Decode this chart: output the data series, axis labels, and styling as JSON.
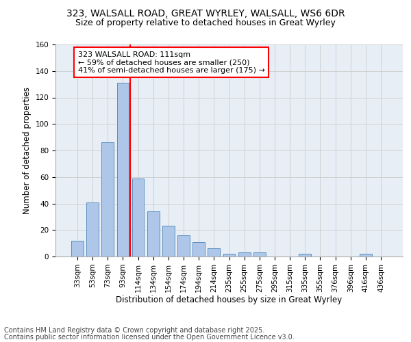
{
  "title1": "323, WALSALL ROAD, GREAT WYRLEY, WALSALL, WS6 6DR",
  "title2": "Size of property relative to detached houses in Great Wyrley",
  "xlabel": "Distribution of detached houses by size in Great Wyrley",
  "ylabel": "Number of detached properties",
  "bar_color": "#aec6e8",
  "bar_edge_color": "#5a8fc0",
  "categories": [
    "33sqm",
    "53sqm",
    "73sqm",
    "93sqm",
    "114sqm",
    "134sqm",
    "154sqm",
    "174sqm",
    "194sqm",
    "214sqm",
    "235sqm",
    "255sqm",
    "275sqm",
    "295sqm",
    "315sqm",
    "335sqm",
    "355sqm",
    "376sqm",
    "396sqm",
    "416sqm",
    "436sqm"
  ],
  "values": [
    12,
    41,
    86,
    131,
    59,
    34,
    23,
    16,
    11,
    6,
    2,
    3,
    3,
    0,
    0,
    2,
    0,
    0,
    0,
    2,
    0
  ],
  "annotation_text": "323 WALSALL ROAD: 111sqm\n← 59% of detached houses are smaller (250)\n41% of semi-detached houses are larger (175) →",
  "annotation_box_color": "white",
  "annotation_box_edge_color": "red",
  "vline_color": "red",
  "vline_x": 3.5,
  "ylim": [
    0,
    160
  ],
  "yticks": [
    0,
    20,
    40,
    60,
    80,
    100,
    120,
    140,
    160
  ],
  "grid_color": "#cccccc",
  "bg_color": "#e8eef5",
  "footer1": "Contains HM Land Registry data © Crown copyright and database right 2025.",
  "footer2": "Contains public sector information licensed under the Open Government Licence v3.0.",
  "title_fontsize": 10,
  "subtitle_fontsize": 9,
  "annotation_fontsize": 8,
  "axis_label_fontsize": 8.5,
  "tick_fontsize": 7.5,
  "footer_fontsize": 7
}
